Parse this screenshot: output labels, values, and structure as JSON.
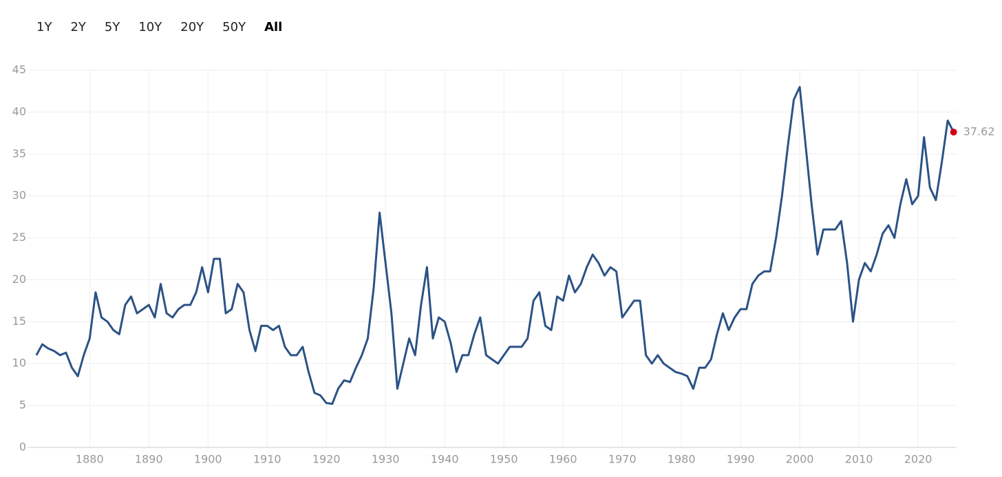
{
  "range_buttons": [
    "1Y",
    "2Y",
    "5Y",
    "10Y",
    "20Y",
    "50Y",
    "All"
  ],
  "selected": "All",
  "chart_data": {
    "type": "line",
    "xlim": [
      1869.5,
      2026.5
    ],
    "xticks": [
      1880,
      1890,
      1900,
      1910,
      1920,
      1930,
      1940,
      1950,
      1960,
      1970,
      1980,
      1990,
      2000,
      2010,
      2020
    ],
    "ylim": [
      0,
      45
    ],
    "yticks": [
      0,
      5,
      10,
      15,
      20,
      25,
      30,
      35,
      40,
      45
    ],
    "grid": true,
    "x": [
      1871,
      1872,
      1873,
      1874,
      1875,
      1876,
      1877,
      1878,
      1879,
      1880,
      1881,
      1882,
      1883,
      1884,
      1885,
      1886,
      1887,
      1888,
      1889,
      1890,
      1891,
      1892,
      1893,
      1894,
      1895,
      1896,
      1897,
      1898,
      1899,
      1900,
      1901,
      1902,
      1903,
      1904,
      1905,
      1906,
      1907,
      1908,
      1909,
      1910,
      1911,
      1912,
      1913,
      1914,
      1915,
      1916,
      1917,
      1918,
      1919,
      1920,
      1921,
      1922,
      1923,
      1924,
      1925,
      1926,
      1927,
      1928,
      1929,
      1930,
      1931,
      1932,
      1933,
      1934,
      1935,
      1936,
      1937,
      1938,
      1939,
      1940,
      1941,
      1942,
      1943,
      1944,
      1945,
      1946,
      1947,
      1948,
      1949,
      1950,
      1951,
      1952,
      1953,
      1954,
      1955,
      1956,
      1957,
      1958,
      1959,
      1960,
      1961,
      1962,
      1963,
      1964,
      1965,
      1966,
      1967,
      1968,
      1969,
      1970,
      1971,
      1972,
      1973,
      1974,
      1975,
      1976,
      1977,
      1978,
      1979,
      1980,
      1981,
      1982,
      1983,
      1984,
      1985,
      1986,
      1987,
      1988,
      1989,
      1990,
      1991,
      1992,
      1993,
      1994,
      1995,
      1996,
      1997,
      1998,
      1999,
      2000,
      2001,
      2002,
      2003,
      2004,
      2005,
      2006,
      2007,
      2008,
      2009,
      2010,
      2011,
      2012,
      2013,
      2014,
      2015,
      2016,
      2017,
      2018,
      2019,
      2020,
      2021,
      2022,
      2023,
      2024,
      2025,
      2026
    ],
    "series": [
      {
        "color": "#2b5286",
        "values": [
          11,
          12.3,
          11.8,
          11.5,
          11,
          11.3,
          9.5,
          8.5,
          11,
          13,
          18.5,
          15.5,
          15,
          14,
          13.5,
          17,
          18,
          16,
          16.5,
          17,
          15.5,
          19.5,
          16,
          15.5,
          16.5,
          17,
          17,
          18.5,
          21.5,
          18.5,
          22.5,
          22.5,
          16,
          16.5,
          19.5,
          18.5,
          14,
          11.5,
          14.5,
          14.5,
          14,
          14.5,
          12,
          11,
          11,
          12,
          9,
          6.5,
          6.2,
          5.3,
          5.2,
          7,
          8,
          7.8,
          9.5,
          11,
          13,
          19,
          28,
          22,
          16,
          7,
          10,
          13,
          11,
          17,
          21.5,
          13,
          15.5,
          15,
          12.5,
          9,
          11,
          11,
          13.5,
          15.5,
          11,
          10.5,
          10,
          11,
          12,
          12,
          12,
          13,
          17.5,
          18.5,
          14.5,
          14,
          18,
          17.5,
          20.5,
          18.5,
          19.5,
          21.5,
          23,
          22,
          20.5,
          21.5,
          21,
          15.5,
          16.5,
          17.5,
          17.5,
          11,
          10,
          11,
          10,
          9.5,
          9,
          8.8,
          8.5,
          7,
          9.5,
          9.5,
          10.5,
          13.5,
          16,
          14,
          15.5,
          16.5,
          16.5,
          19.5,
          20.5,
          21,
          21,
          25,
          30,
          36,
          41.5,
          43,
          36,
          29,
          23,
          26,
          26,
          26,
          27,
          22,
          15,
          20,
          22,
          21,
          23,
          25.5,
          26.5,
          25,
          29,
          32,
          29,
          30,
          37,
          31,
          29.5,
          34,
          39,
          37.62
        ]
      }
    ]
  }
}
